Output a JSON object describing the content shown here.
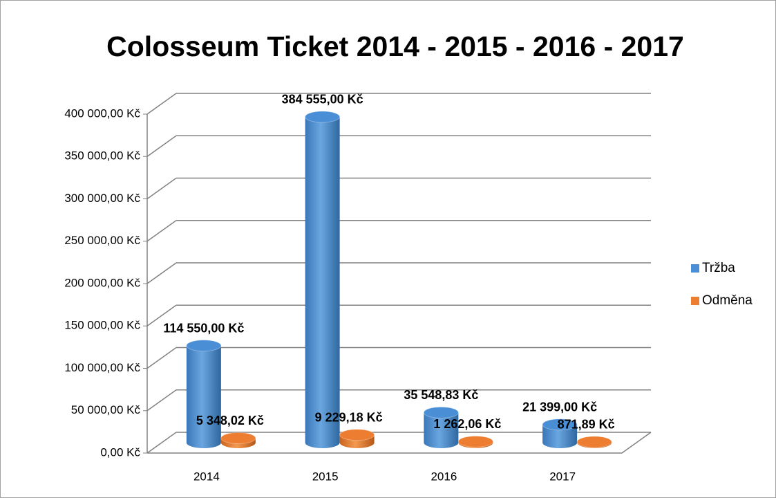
{
  "chart_data": {
    "type": "bar3d",
    "title": "Colosseum Ticket 2014 - 2015 - 2016 - 2017",
    "categories": [
      "2014",
      "2015",
      "2016",
      "2017"
    ],
    "series": [
      {
        "name": "Tržba",
        "color": "#4a8fd6",
        "values": [
          114550,
          384555,
          35548.83,
          21399
        ],
        "value_labels": [
          "114 550,00 Kč",
          "384 555,00 Kč",
          "35 548,83 Kč",
          "21 399,00 Kč"
        ]
      },
      {
        "name": "Odměna",
        "color": "#ed7d31",
        "values": [
          5348.02,
          9229.18,
          1262.06,
          871.89
        ],
        "value_labels": [
          "5 348,02 Kč",
          "9 229,18 Kč",
          "1 262,06 Kč",
          "871,89 Kč"
        ]
      }
    ],
    "ylim": [
      0,
      400000
    ],
    "yticks": [
      {
        "value": 0,
        "label": "0,00 Kč"
      },
      {
        "value": 50000,
        "label": "50 000,00 Kč"
      },
      {
        "value": 100000,
        "label": "100 000,00 Kč"
      },
      {
        "value": 150000,
        "label": "150 000,00 Kč"
      },
      {
        "value": 200000,
        "label": "200 000,00 Kč"
      },
      {
        "value": 250000,
        "label": "250 000,00 Kč"
      },
      {
        "value": 300000,
        "label": "300 000,00 Kč"
      },
      {
        "value": 350000,
        "label": "350 000,00 Kč"
      },
      {
        "value": 400000,
        "label": "400 000,00 Kč"
      }
    ],
    "grid": true,
    "legend": "right"
  }
}
